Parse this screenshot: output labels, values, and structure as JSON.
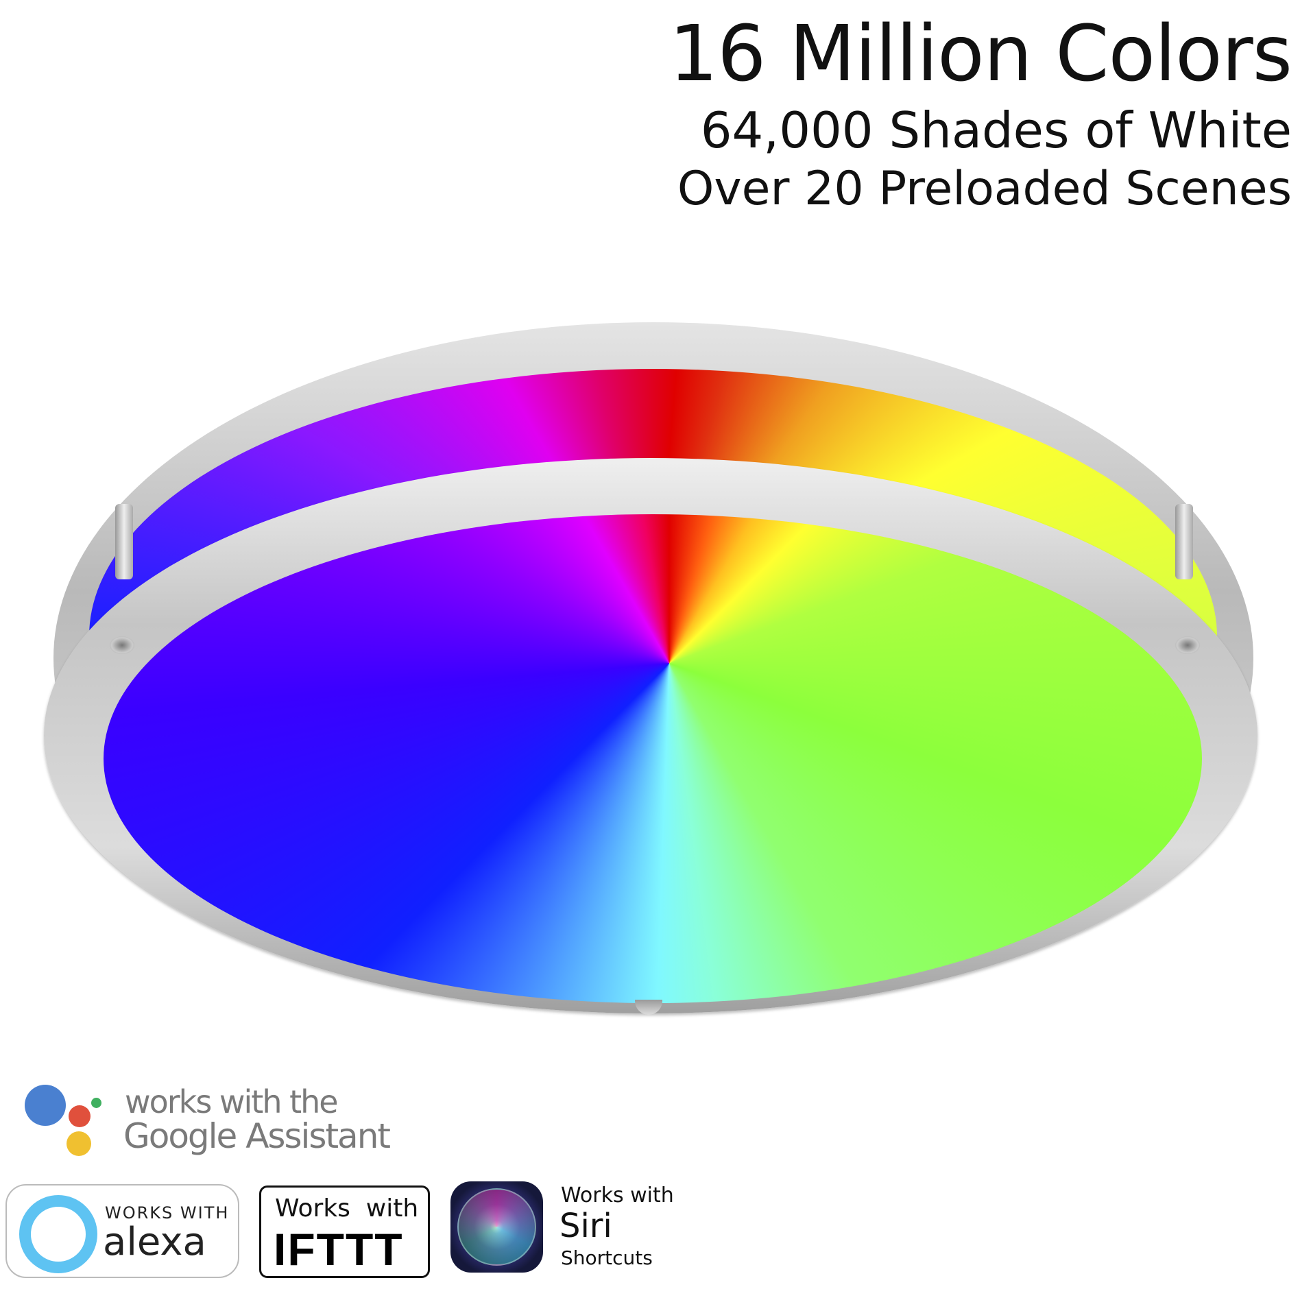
{
  "headline": {
    "title": "16 Million Colors",
    "line2": "64,000 Shades of White",
    "line3": "Over 20 Preloaded Scenes"
  },
  "product": {
    "image": "round-ceiling-light-fixture-rgb",
    "colors": [
      "#e00000",
      "#ffff30",
      "#8cff3c",
      "#80f8ff",
      "#1020ff",
      "#e000ff"
    ]
  },
  "badges": {
    "google": {
      "line1": "works with the",
      "line2": "Google Assistant",
      "dot_colors": [
        "#4a80d0",
        "#e0503c",
        "#f0c030",
        "#40b060"
      ]
    },
    "alexa": {
      "top": "WORKS WITH",
      "name": "alexa",
      "color": "#5ec3f2"
    },
    "ifttt": {
      "top": "Works  with",
      "name": "IFTTT"
    },
    "siri": {
      "line1": "Works with",
      "line2": "Siri",
      "line3": "Shortcuts"
    }
  }
}
